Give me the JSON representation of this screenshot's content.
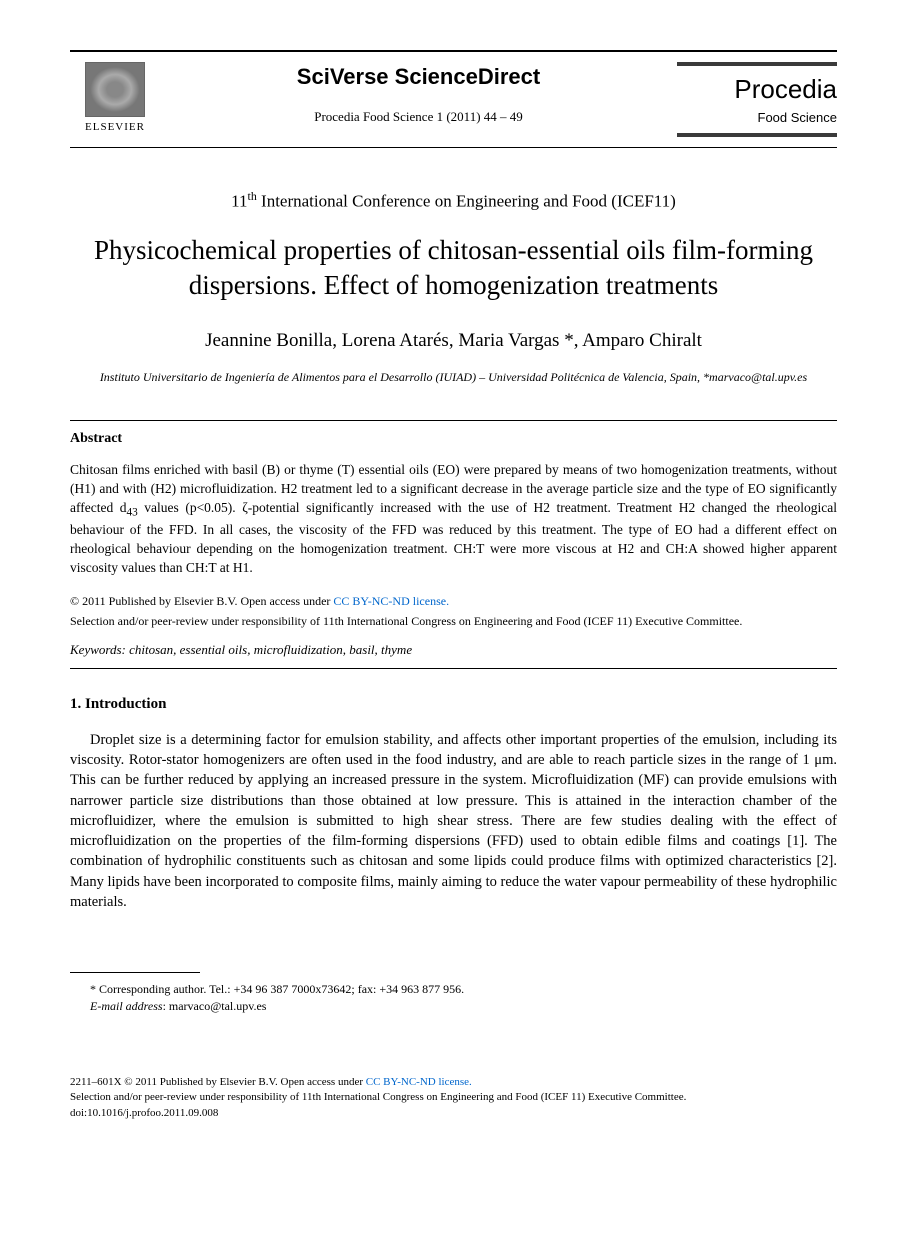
{
  "header": {
    "publisher": "ELSEVIER",
    "platform": "SciVerse ScienceDirect",
    "journal_ref": "Procedia Food Science 1 (2011) 44 – 49",
    "procedia": "Procedia",
    "procedia_sub": "Food Science"
  },
  "conference": "11th International Conference on Engineering and Food (ICEF11)",
  "title": "Physicochemical properties of chitosan-essential oils film-forming dispersions. Effect of homogenization treatments",
  "authors": "Jeannine Bonilla, Lorena Atarés, Maria Vargas *, Amparo Chiralt",
  "affiliation": "Instituto Universitario de Ingeniería de Alimentos para el Desarrollo (IUIAD) – Universidad Politécnica de Valencia, Spain, *marvaco@tal.upv.es",
  "abstract": {
    "heading": "Abstract",
    "text": "Chitosan films enriched with basil (B) or thyme (T) essential oils (EO) were prepared by means of two homogenization treatments, without (H1) and with (H2) microfluidization. H2 treatment led to a significant decrease in the average particle size and the type of EO significantly affected d43 values (p<0.05). ζ-potential significantly increased with the use of H2 treatment. Treatment H2 changed the rheological behaviour of the FFD. In all cases, the viscosity of the FFD was reduced by this treatment. The type of EO had a different effect on rheological behaviour depending on the homogenization treatment. CH:T were more viscous at H2 and CH:A showed higher apparent viscosity values than CH:T at H1."
  },
  "copyright": {
    "line": "© 2011 Published by Elsevier B.V. ",
    "license_prefix": "Open access under ",
    "license_text": "CC BY-NC-ND license.",
    "selection": "Selection and/or peer-review under responsibility of 11th International Congress on Engineering and Food (ICEF 11) Executive Committee."
  },
  "keywords": {
    "label": "Keywords:",
    "text": " chitosan, essential oils, microfluidization, basil, thyme"
  },
  "introduction": {
    "heading": "1. Introduction",
    "text": "Droplet size is a determining factor for emulsion stability, and affects other important properties of the emulsion, including its viscosity. Rotor-stator homogenizers are often used in the food industry, and are able to reach particle sizes in the range of 1 μm. This can be further reduced by applying an increased pressure in the system. Microfluidization (MF) can provide emulsions with narrower particle size distributions than those obtained at low pressure. This is attained in the interaction chamber of the microfluidizer, where the emulsion is submitted to high shear stress. There are few studies dealing with the effect of microfluidization on the properties of the film-forming dispersions (FFD) used to obtain edible films and coatings [1]. The combination of hydrophilic constituents such as chitosan and some lipids could produce films with optimized characteristics [2]. Many lipids have been incorporated to composite films, mainly aiming to reduce the water vapour permeability of these hydrophilic materials."
  },
  "footnote": {
    "corresponding": "* Corresponding author. Tel.: +34 96 387 7000x73642; fax: +34 963 877 956.",
    "email_label": "E-mail address",
    "email": ": marvaco@tal.upv.es"
  },
  "bottom": {
    "issn_line": "2211–601X © 2011 Published by Elsevier B.V. ",
    "license_prefix": "Open access under ",
    "license_text": "CC BY-NC-ND license.",
    "selection": "Selection and/or peer-review under responsibility of 11th International Congress on Engineering and Food (ICEF 11) Executive Committee.",
    "doi": "doi:10.1016/j.profoo.2011.09.008"
  },
  "colors": {
    "text": "#000000",
    "background": "#ffffff",
    "link": "#0066cc",
    "rule": "#000000"
  },
  "typography": {
    "body_font": "Times New Roman",
    "title_fontsize": 27,
    "author_fontsize": 19,
    "body_fontsize": 14.5,
    "abstract_fontsize": 13.5,
    "footnote_fontsize": 12
  }
}
